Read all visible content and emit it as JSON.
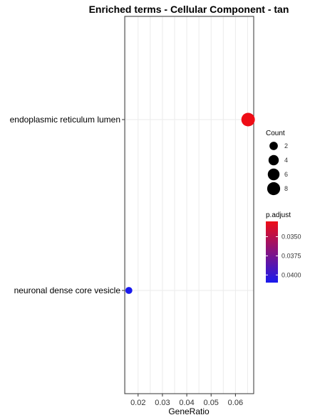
{
  "chart_data": {
    "type": "scatter",
    "title": "Enriched terms - Cellular Component - tan",
    "xlabel": "GeneRatio",
    "ylabel": "",
    "xlim": [
      0.0145,
      0.0675
    ],
    "xticks": [
      "0.02",
      "0.03",
      "0.04",
      "0.05",
      "0.06"
    ],
    "xtick_values": [
      0.02,
      0.03,
      0.04,
      0.05,
      0.06
    ],
    "categories": [
      "endoplasmic reticulum lumen",
      "neuronal dense core vesicle"
    ],
    "points": [
      {
        "term": "endoplasmic reticulum lumen",
        "gene_ratio": 0.0652,
        "count": 9,
        "p_adjust": 0.033,
        "color": "#ee0d16"
      },
      {
        "term": "neuronal dense core vesicle",
        "gene_ratio": 0.0162,
        "count": 1,
        "p_adjust": 0.041,
        "color": "#1a1aee"
      }
    ],
    "grid": true,
    "legend_position": "right",
    "size_legend": {
      "title": "Count",
      "values": [
        2,
        4,
        6,
        8
      ],
      "labels": [
        "2",
        "4",
        "6",
        "8"
      ]
    },
    "color_legend": {
      "title": "p.adjust",
      "labels": [
        "0.0350",
        "0.0375",
        "0.0400"
      ],
      "values": [
        0.035,
        0.0375,
        0.04
      ],
      "range": [
        0.033,
        0.041
      ],
      "low_color": "#ee0d16",
      "high_color": "#1a1aee"
    }
  }
}
